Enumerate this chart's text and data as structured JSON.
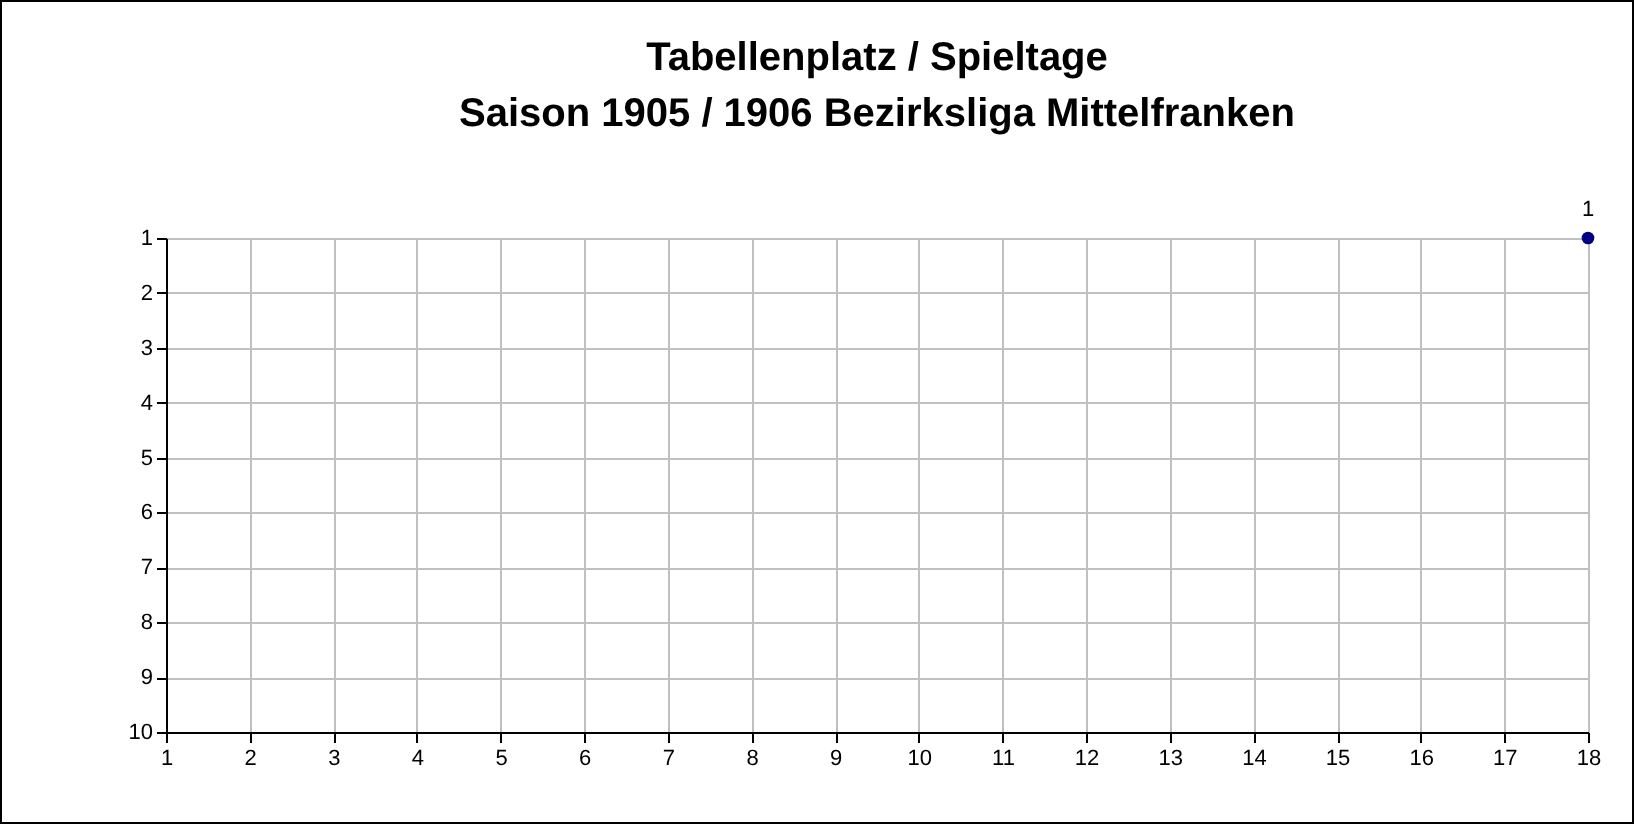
{
  "chart_data": {
    "type": "line",
    "title": "Tabellenplatz / Spieltage",
    "subtitle": "Saison 1905 / 1906 Bezirksliga Mittelfranken",
    "xlim": [
      1,
      18
    ],
    "xticks": [
      1,
      2,
      3,
      4,
      5,
      6,
      7,
      8,
      9,
      10,
      11,
      12,
      13,
      14,
      15,
      16,
      17,
      18
    ],
    "ylim": [
      10,
      1
    ],
    "yticks": [
      1,
      2,
      3,
      4,
      5,
      6,
      7,
      8,
      9,
      10
    ],
    "series": [
      {
        "color": "#000080",
        "x": [
          18
        ],
        "values": [
          1
        ]
      }
    ],
    "grid": true,
    "marker": "circle",
    "data_labels": true
  }
}
